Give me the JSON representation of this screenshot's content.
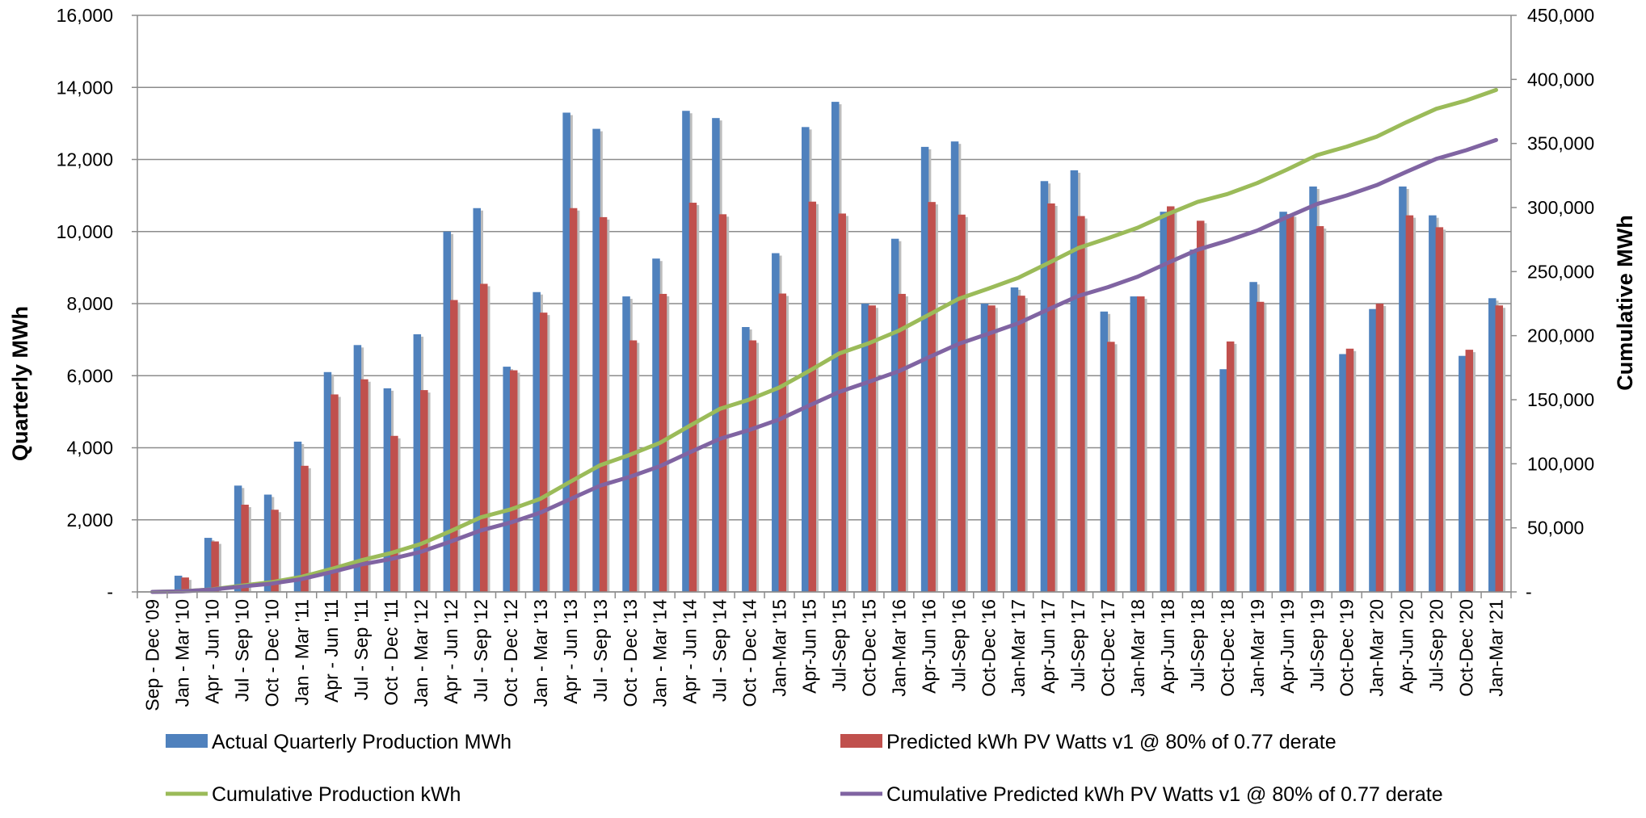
{
  "chart_data": {
    "type": "bar",
    "categories": [
      "Sep - Dec '09",
      "Jan - Mar '10",
      "Apr - Jun '10",
      "Jul - Sep '10",
      "Oct - Dec '10",
      "Jan - Mar '11",
      "Apr - Jun '11",
      "Jul - Sep '11",
      "Oct - Dec '11",
      "Jan - Mar '12",
      "Apr - Jun '12",
      "Jul - Sep '12",
      "Oct - Dec '12",
      "Jan - Mar '13",
      "Apr - Jun '13",
      "Jul - Sep '13",
      "Oct - Dec '13",
      "Jan - Mar '14",
      "Apr - Jun '14",
      "Jul - Sep '14",
      "Oct - Dec '14",
      "Jan-Mar '15",
      "Apr-Jun '15",
      "Jul-Sep '15",
      "Oct-Dec '15",
      "Jan-Mar '16",
      "Apr-Jun '16",
      "Jul-Sep '16",
      "Oct-Dec '16",
      "Jan-Mar '17",
      "Apr-Jun '17",
      "Jul-Sep '17",
      "Oct-Dec '17",
      "Jan-Mar '18",
      "Apr-Jun '18",
      "Jul-Sep '18",
      "Oct-Dec '18",
      "Jan-Mar '19",
      "Apr-Jun '19",
      "Jul-Sep '19",
      "Oct-Dec '19",
      "Jan-Mar '20",
      "Apr-Jun '20",
      "Jul-Sep '20",
      "Oct-Dec '20",
      "Jan-Mar '21"
    ],
    "series": [
      {
        "name": "Actual Quarterly Production MWh",
        "type": "bar",
        "axis": "left",
        "color": "#4F81BD",
        "values": [
          0,
          450,
          1500,
          2950,
          2700,
          4170,
          6100,
          6850,
          5650,
          7150,
          10000,
          10650,
          6250,
          8320,
          13300,
          12850,
          8200,
          9250,
          13350,
          13150,
          7350,
          9400,
          12900,
          13600,
          8000,
          9800,
          12350,
          12500,
          8000,
          8450,
          11400,
          11700,
          7780,
          8200,
          10550,
          9500,
          6180,
          8600,
          10550,
          11250,
          6600,
          7850,
          11250,
          10450,
          6550,
          8150
        ]
      },
      {
        "name": "Predicted kWh PV Watts v1 @ 80% of 0.77 derate",
        "type": "bar",
        "axis": "left",
        "color": "#C0504D",
        "values": [
          0,
          400,
          1400,
          2420,
          2280,
          3500,
          5480,
          5900,
          4330,
          5600,
          8100,
          8550,
          6150,
          7750,
          10650,
          10400,
          6980,
          8270,
          10800,
          10480,
          6980,
          8280,
          10830,
          10500,
          7950,
          8270,
          10820,
          10470,
          7950,
          8220,
          10780,
          10430,
          6940,
          8200,
          10700,
          10300,
          6950,
          8050,
          10480,
          10150,
          6750,
          8000,
          10450,
          10120,
          6720,
          7950
        ]
      },
      {
        "name": "Cumulative Production kWh",
        "type": "line",
        "axis": "right",
        "color": "#9BBB59",
        "values": [
          0,
          450,
          1950,
          4900,
          7600,
          11770,
          17870,
          24720,
          30370,
          37520,
          47520,
          58170,
          64420,
          72740,
          86040,
          98890,
          107090,
          116340,
          129690,
          142840,
          150190,
          159590,
          172490,
          186090,
          194090,
          203890,
          216240,
          228740,
          236740,
          245190,
          256590,
          268290,
          276070,
          284270,
          294820,
          304320,
          310500,
          319100,
          329650,
          340900,
          347500,
          355350,
          366600,
          377050,
          383600,
          391750
        ]
      },
      {
        "name": "Cumulative Predicted kWh PV Watts v1 @ 80% of 0.77 derate",
        "type": "line",
        "axis": "right",
        "color": "#8064A2",
        "values": [
          0,
          400,
          1800,
          4220,
          6500,
          10000,
          15480,
          21380,
          25710,
          31310,
          39410,
          47960,
          54110,
          61860,
          72510,
          82910,
          89890,
          98160,
          108960,
          119440,
          126420,
          134700,
          145530,
          156030,
          163980,
          172250,
          183070,
          193540,
          201490,
          209710,
          220490,
          230920,
          237860,
          246060,
          256760,
          267060,
          274010,
          282060,
          292540,
          302690,
          309440,
          317440,
          327890,
          338010,
          344730,
          352680
        ]
      }
    ],
    "y_left": {
      "label": "Quarterly MWh",
      "ylim": [
        0,
        16000
      ],
      "ticks": [
        "-",
        "2,000",
        "4,000",
        "6,000",
        "8,000",
        "10,000",
        "12,000",
        "14,000",
        "16,000"
      ]
    },
    "y_right": {
      "label": "Cumulative MWh",
      "ylim": [
        0,
        450000
      ],
      "ticks": [
        "-",
        "50,000",
        "100,000",
        "150,000",
        "200,000",
        "250,000",
        "300,000",
        "350,000",
        "400,000",
        "450,000"
      ]
    },
    "grid": true,
    "legend_position": "bottom"
  }
}
